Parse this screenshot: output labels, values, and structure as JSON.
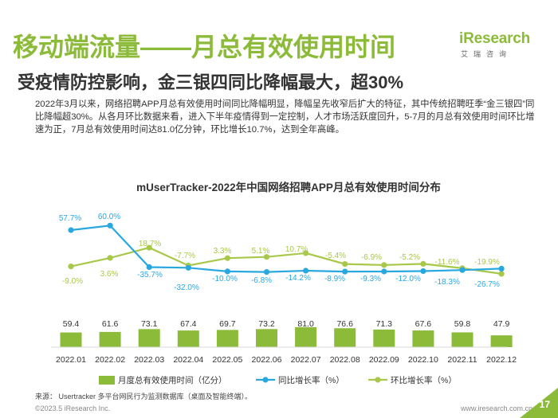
{
  "header": {
    "title": "移动端流量——月总有效使用时间",
    "subtitle": "受疫情防控影响，金三银四同比降幅最大，超30%",
    "body": "2022年3月以来，网络招聘APP月总有效使用时间同比降幅明显，降幅呈先收窄后扩大的特征，其中传统招聘旺季“金三银四”同比降幅超30%。从各月环比数据来看，进入下半年疫情得到一定控制，人才市场活跃度回升，5-7月的月总有效使用时间环比增速为正，7月总有效使用时间达81.0亿分钟，环比增长10.7%，达到全年高峰。"
  },
  "logo": {
    "main": "iResearch",
    "sub": "艾瑞咨询",
    "icon": "iresearch-logo-icon"
  },
  "footer": {
    "source": "来源：  Usertracker 多平台网民行为监测数据库（桌面及智能终端）。",
    "copyright": "©2023.5 iResearch Inc.",
    "site": "www.iresearch.com.cn",
    "page": "17"
  },
  "colors": {
    "accent": "#8cbb3a",
    "bar": "#8cbb3a",
    "yoy": "#29a8e0",
    "mom": "#a8c84a",
    "text": "#333333"
  },
  "chart_data": {
    "type": "bar",
    "title": "mUserTracker-2022年中国网络招聘APP月总有效使用时间分布",
    "categories": [
      "2022.01",
      "2022.02",
      "2022.03",
      "2022.04",
      "2022.05",
      "2022.06",
      "2022.07",
      "2022.08",
      "2022.09",
      "2022.10",
      "2022.11",
      "2022.12"
    ],
    "series": [
      {
        "name": "月度总有效使用时间（亿分）",
        "type": "bar",
        "values": [
          59.4,
          61.6,
          73.1,
          67.4,
          69.7,
          73.2,
          81.0,
          76.6,
          71.3,
          67.6,
          59.8,
          47.9
        ],
        "labels": [
          "59.4",
          "61.6",
          "73.1",
          "67.4",
          "69.7",
          "73.2",
          "81.0",
          "76.6",
          "71.3",
          "67.6",
          "59.8",
          "47.9"
        ]
      },
      {
        "name": "同比增长率（%）",
        "type": "line",
        "values": [
          57.7,
          60.0,
          -35.7,
          -32.0,
          -10.0,
          -6.8,
          -14.2,
          -8.9,
          -9.3,
          -12.0,
          -18.3,
          -26.7
        ],
        "labels": [
          "57.7%",
          "60.0%",
          "-35.7%",
          "-32.0%",
          "-10.0%",
          "-6.8%",
          "-14.2%",
          "-8.9%",
          "-9.3%",
          "-12.0%",
          "-18.3%",
          "-26.7%"
        ]
      },
      {
        "name": "环比增长率（%）",
        "type": "line",
        "values": [
          -9.0,
          3.6,
          18.7,
          -7.7,
          3.3,
          5.1,
          10.7,
          -5.4,
          -6.9,
          -5.2,
          -11.6,
          -19.9
        ],
        "labels": [
          "-9.0%",
          "3.6%",
          "18.7%",
          "-7.7%",
          "3.3%",
          "5.1%",
          "10.7%",
          "-5.4%",
          "-6.9%",
          "-5.2%",
          "-11.6%",
          "-19.9%"
        ]
      }
    ],
    "legend_position": "bottom",
    "grid": false
  }
}
